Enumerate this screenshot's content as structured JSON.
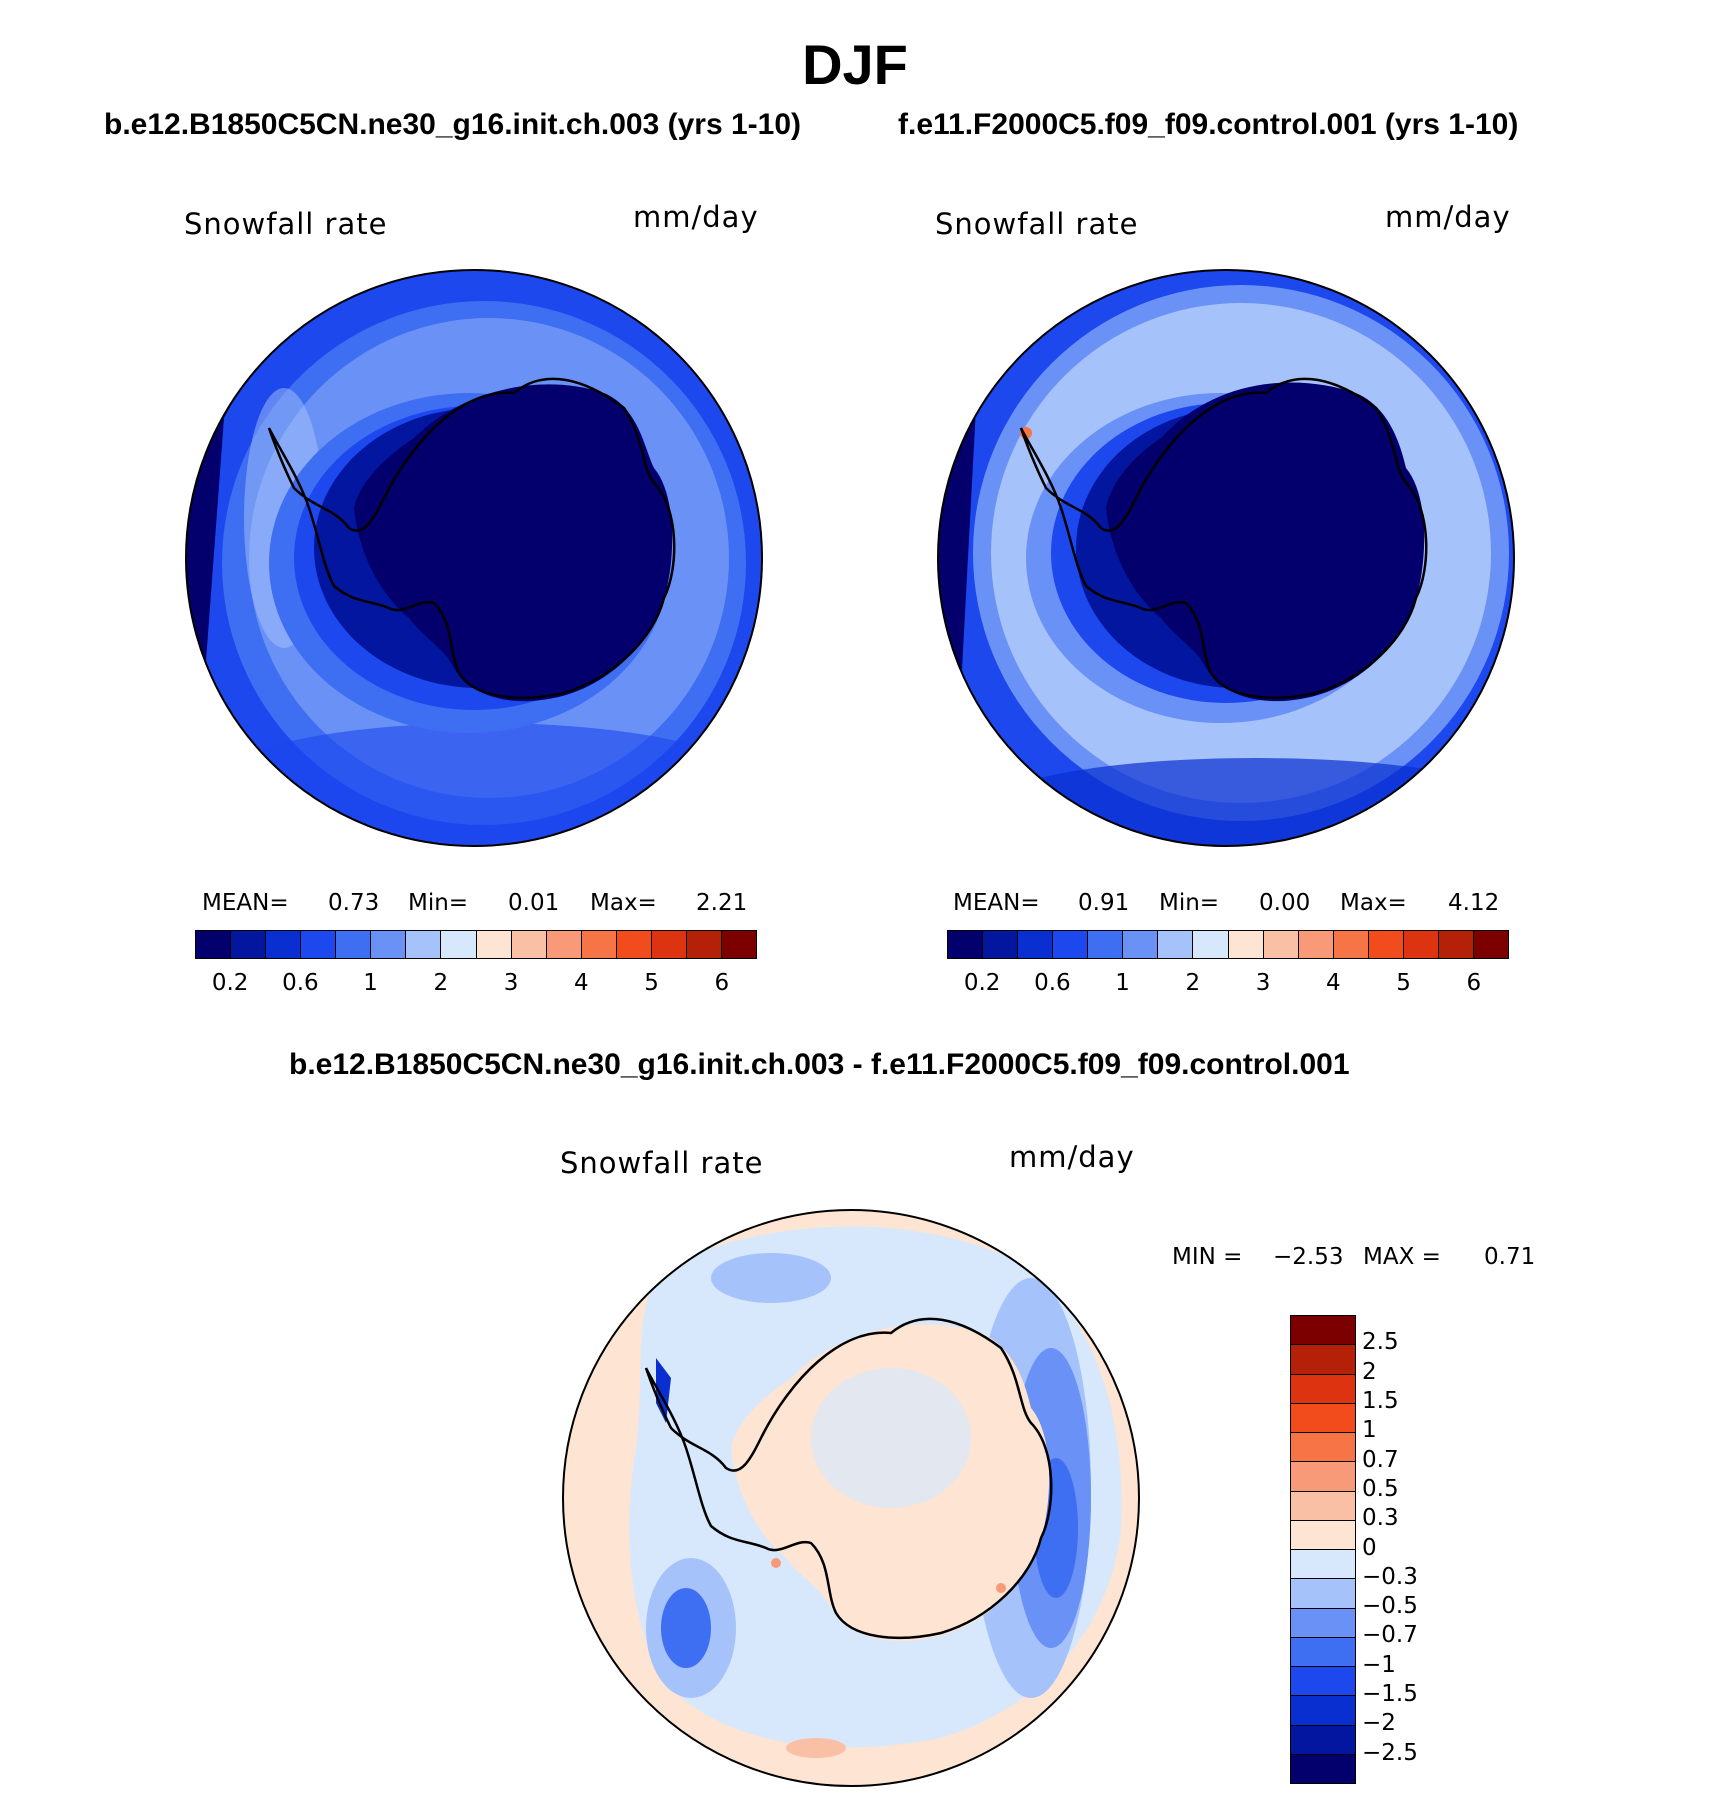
{
  "title": "DJF",
  "panels": [
    {
      "case_title": "b.e12.B1850C5CN.ne30_g16.init.ch.003 (yrs 1-10)",
      "variable": "Snowfall rate",
      "units": "mm/day",
      "stats": {
        "mean_label": "MEAN=",
        "mean": "0.73",
        "min_label": "Min=",
        "min": "0.01",
        "max_label": "Max=",
        "max": "2.21"
      }
    },
    {
      "case_title": "f.e11.F2000C5.f09_f09.control.001 (yrs 1-10)",
      "variable": "Snowfall rate",
      "units": "mm/day",
      "stats": {
        "mean_label": "MEAN=",
        "mean": "0.91",
        "min_label": "Min=",
        "min": "0.00",
        "max_label": "Max=",
        "max": "4.12"
      }
    }
  ],
  "diff_panel": {
    "case_title": "b.e12.B1850C5CN.ne30_g16.init.ch.003 - f.e11.F2000C5.f09_f09.control.001",
    "variable": "Snowfall rate",
    "units": "mm/day",
    "stats": {
      "min_label": "MIN =",
      "min": "−2.53",
      "max_label": "MAX =",
      "max": "0.71"
    }
  },
  "colorbars": {
    "absolute": {
      "colors": [
        "#03006e",
        "#0316a0",
        "#0a2fd0",
        "#1c48ee",
        "#3e6ef2",
        "#6a92f6",
        "#a6c2fa",
        "#d7e8fc",
        "#fde4d3",
        "#fac0a6",
        "#f89a77",
        "#f77446",
        "#f24c1c",
        "#dd3310",
        "#b52008",
        "#7c0000"
      ],
      "tick_labels": [
        "0.2",
        "0.6",
        "1",
        "2",
        "3",
        "4",
        "5",
        "6"
      ]
    },
    "difference": {
      "colors": [
        "#7c0000",
        "#b52008",
        "#dd3310",
        "#f24c1c",
        "#f77446",
        "#f89a77",
        "#fac0a6",
        "#fde4d3",
        "#d7e8fc",
        "#a6c2fa",
        "#6a92f6",
        "#3e6ef2",
        "#1c48ee",
        "#0a2fd0",
        "#0316a0",
        "#03006e"
      ],
      "tick_labels": [
        "2.5",
        "2",
        "1.5",
        "1",
        "0.7",
        "0.5",
        "0.3",
        "0",
        "−0.3",
        "−0.5",
        "−0.7",
        "−1",
        "−1.5",
        "−2",
        "−2.5"
      ]
    }
  },
  "chart_data": [
    {
      "type": "heatmap",
      "projection": "polar stereographic (south pole)",
      "title": "b.e12.B1850C5CN.ne30_g16.init.ch.003 (yrs 1-10)",
      "variable": "Snowfall rate",
      "units": "mm/day",
      "mean": 0.73,
      "min": 0.01,
      "max": 2.21,
      "contour_levels": [
        0.2,
        0.4,
        0.6,
        0.8,
        1,
        1.5,
        2,
        2.5,
        3,
        3.5,
        4,
        4.5,
        5,
        5.5,
        6
      ]
    },
    {
      "type": "heatmap",
      "projection": "polar stereographic (south pole)",
      "title": "f.e11.F2000C5.f09_f09.control.001 (yrs 1-10)",
      "variable": "Snowfall rate",
      "units": "mm/day",
      "mean": 0.91,
      "min": 0.0,
      "max": 4.12,
      "contour_levels": [
        0.2,
        0.4,
        0.6,
        0.8,
        1,
        1.5,
        2,
        2.5,
        3,
        3.5,
        4,
        4.5,
        5,
        5.5,
        6
      ]
    },
    {
      "type": "heatmap",
      "projection": "polar stereographic (south pole)",
      "title": "b.e12.B1850C5CN.ne30_g16.init.ch.003 - f.e11.F2000C5.f09_f09.control.001",
      "variable": "Snowfall rate",
      "units": "mm/day",
      "min": -2.53,
      "max": 0.71,
      "contour_levels": [
        -2.5,
        -2,
        -1.5,
        -1,
        -0.7,
        -0.5,
        -0.3,
        0,
        0.3,
        0.5,
        0.7,
        1,
        1.5,
        2,
        2.5
      ]
    }
  ]
}
